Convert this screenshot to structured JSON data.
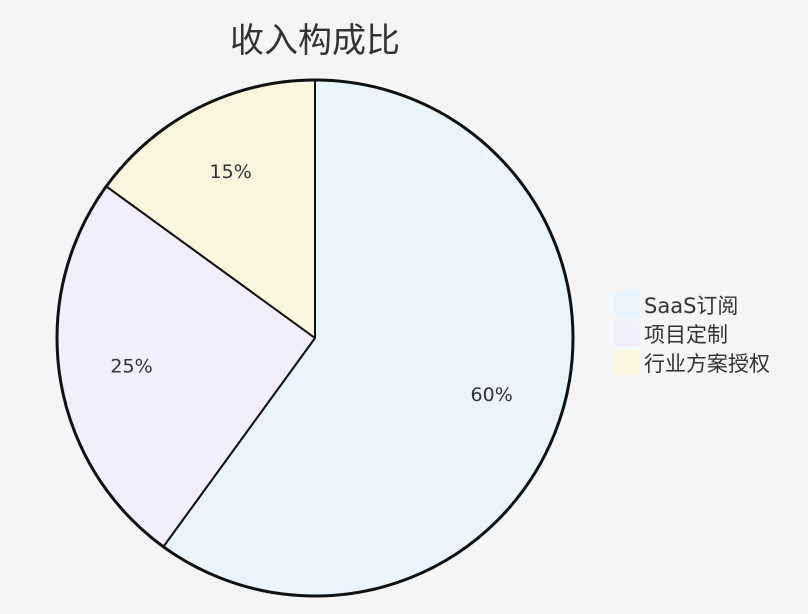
{
  "chart_data": {
    "type": "pie",
    "title": "收入构成比",
    "slices": [
      {
        "label": "SaaS订阅",
        "value": 60,
        "value_label": "60%",
        "color": "#eaf4fc"
      },
      {
        "label": "项目定制",
        "value": 25,
        "value_label": "25%",
        "color": "#f2eefc"
      },
      {
        "label": "行业方案授权",
        "value": 15,
        "value_label": "15%",
        "color": "#faf6de"
      }
    ],
    "start": "top",
    "direction": "clockwise",
    "legend_position": "right",
    "border_color": "#111111"
  }
}
